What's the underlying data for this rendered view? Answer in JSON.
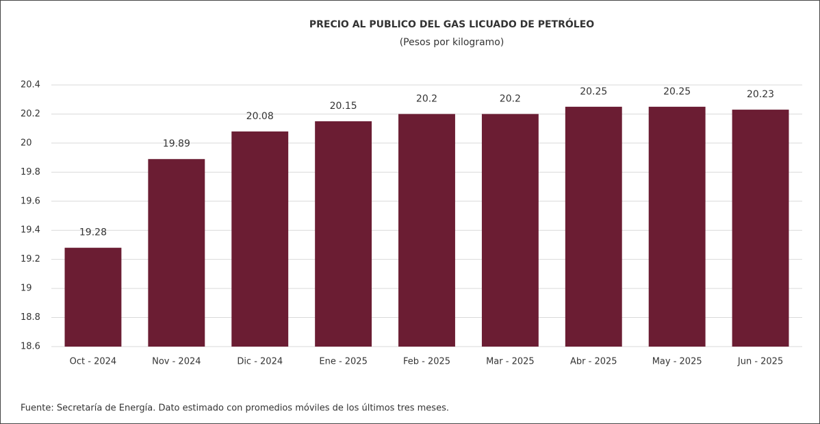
{
  "chart_data": {
    "type": "bar",
    "title": "PRECIO AL PUBLICO DEL GAS LICUADO DE PETRÓLEO",
    "subtitle": "(Pesos por kilogramo)",
    "categories": [
      "Oct - 2024",
      "Nov - 2024",
      "Dic - 2024",
      "Ene - 2025",
      "Feb - 2025",
      "Mar - 2025",
      "Abr - 2025",
      "May - 2025",
      "Jun - 2025"
    ],
    "values": [
      19.28,
      19.89,
      20.08,
      20.15,
      20.2,
      20.2,
      20.25,
      20.25,
      20.23
    ],
    "color": "#6b1d33",
    "ylim": [
      18.6,
      20.4
    ],
    "yticks": [
      18.6,
      18.8,
      19,
      19.2,
      19.4,
      19.6,
      19.8,
      20,
      20.2,
      20.4
    ],
    "grid": true,
    "note": "Fuente: Secretaría de Energía. Dato estimado con promedios móviles de los últimos tres meses."
  }
}
